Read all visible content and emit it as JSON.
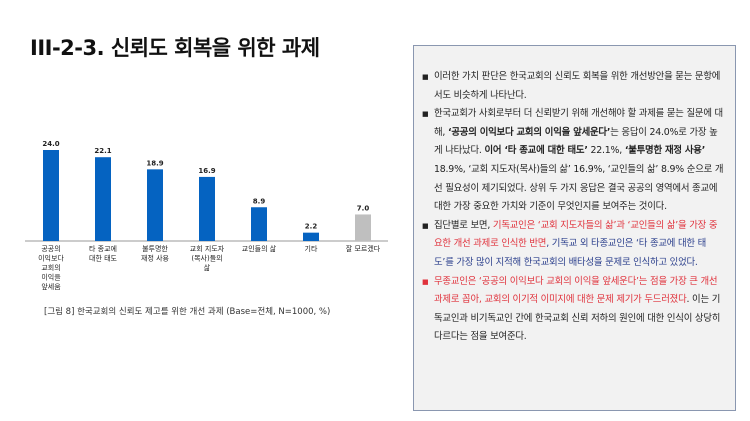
{
  "title": "III-2-3. 신뢰도 회복을 위한 과제",
  "caption": "[그림 8] 한국교회의 신뢰도 제고를 위한 개선 과제 (Base=전체, N=1000, %)",
  "chart_data": {
    "type": "bar",
    "categories": [
      [
        "공공의",
        "이익보다",
        "교회의",
        "이익을",
        "앞세움"
      ],
      [
        "타 종교에",
        "대한 태도"
      ],
      [
        "불투명한",
        "재정 사용"
      ],
      [
        "교회 지도자",
        "(목사)들의",
        "삶"
      ],
      [
        "교인들의 삶"
      ],
      [
        "기타"
      ],
      [
        "잘 모르겠다"
      ]
    ],
    "values": [
      24.0,
      22.1,
      18.9,
      16.9,
      8.9,
      2.2,
      7.0
    ],
    "value_labels": [
      "24.0",
      "22.1",
      "18.9",
      "16.9",
      "8.9",
      "2.2",
      "7.0"
    ],
    "colors": [
      "#0563c1",
      "#0563c1",
      "#0563c1",
      "#0563c1",
      "#0563c1",
      "#0563c1",
      "#bfbfbf"
    ],
    "ylim": [
      0,
      25
    ]
  },
  "panel": {
    "items": [
      {
        "bullet_color": "#222",
        "segments": [
          {
            "t": "이러한 가치 판단은 한국교회의 신뢰도 회복을 위한 개선방안을 묻는 문항에서도 비슷하게 나타난다.",
            "c": ""
          }
        ]
      },
      {
        "bullet_color": "#222",
        "segments": [
          {
            "t": "한국교회가 사회로부터 더 신뢰받기 위해 개선해야 할 과제를 묻는 질문에 대해, ",
            "c": ""
          },
          {
            "t": "‘공공의 이익보다 교회의 이익을 앞세운다’",
            "c": "b"
          },
          {
            "t": "는 응답이 24.0%로 가장 높게 나타났다. ",
            "c": ""
          },
          {
            "t": "이어 ‘타 종교에 대한 태도’",
            "c": "b"
          },
          {
            "t": " 22.1%, ",
            "c": ""
          },
          {
            "t": "‘불투명한 재정 사용’",
            "c": "b"
          },
          {
            "t": " 18.9%, ‘교회 지도자(목사)들의 삶’ 16.9%, ‘교인들의 삶’ 8.9% 순으로 개선 필요성이 제기되었다. 상위 두 가지 응답은 결국 공공의 영역에서 종교에 대한 가장 중요한 가치와 기준이 무엇인지를 보여주는 것이다.",
            "c": ""
          }
        ]
      },
      {
        "bullet_color": "#222",
        "segments": [
          {
            "t": "집단별로 보면, ",
            "c": ""
          },
          {
            "t": "기독교인은 ‘교회 지도자들의 삶’과 ‘교인들의 삶’을 가장 중요한 개선 과제로 인식한 반면",
            "c": "red"
          },
          {
            "t": ", 기독교 외 타종교인은 ‘타 종교에 대한 태도’를 가장 많이 지적해 한국교회의 배타성을 문제로 인식하고 있었다.",
            "c": "blue"
          }
        ]
      },
      {
        "bullet_color": "#e0323c",
        "segments": [
          {
            "t": "무종교인은 ‘공공의 이익보다 교회의 이익을 앞세운다’는 점을 가장 큰 개선 과제로 꼽아, 교회의 이기적 이미지에 대한 문제 제기가 두드러졌다",
            "c": "red"
          },
          {
            "t": ". 이는 기독교인과 비기독교인 간에 한국교회 신뢰 저하의 원인에 대한 인식이 상당히 다르다는 점을 보여준다.",
            "c": ""
          }
        ]
      }
    ]
  }
}
